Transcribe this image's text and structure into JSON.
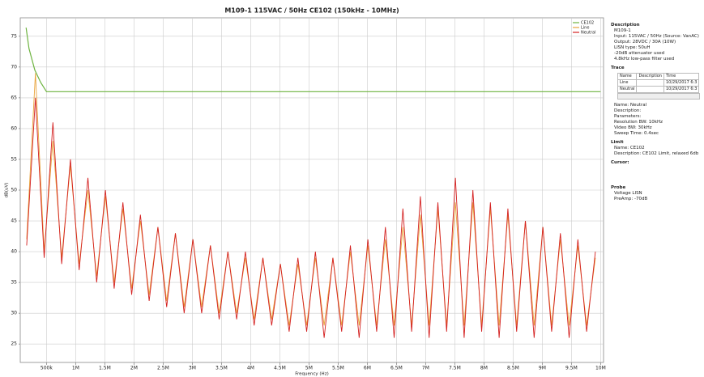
{
  "chart_data": {
    "type": "line",
    "title": "M109-1 115VAC / 50Hz CE102 (150kHz - 10MHz)",
    "xlabel": "Frequency (Hz)",
    "ylabel": "dB(uV)",
    "xlim": [
      50000,
      10050000
    ],
    "ylim": [
      22,
      78
    ],
    "grid": true,
    "legend": "upper right",
    "xticks": [
      {
        "value": 500000,
        "label": "500k"
      },
      {
        "value": 1000000,
        "label": "1M"
      },
      {
        "value": 1500000,
        "label": "1.5M"
      },
      {
        "value": 2000000,
        "label": "2M"
      },
      {
        "value": 2500000,
        "label": "2.5M"
      },
      {
        "value": 3000000,
        "label": "3M"
      },
      {
        "value": 3500000,
        "label": "3.5M"
      },
      {
        "value": 4000000,
        "label": "4M"
      },
      {
        "value": 4500000,
        "label": "4.5M"
      },
      {
        "value": 5000000,
        "label": "5M"
      },
      {
        "value": 5500000,
        "label": "5.5M"
      },
      {
        "value": 6000000,
        "label": "6M"
      },
      {
        "value": 6500000,
        "label": "6.5M"
      },
      {
        "value": 7000000,
        "label": "7M"
      },
      {
        "value": 7500000,
        "label": "7.5M"
      },
      {
        "value": 8000000,
        "label": "8M"
      },
      {
        "value": 8500000,
        "label": "8.5M"
      },
      {
        "value": 9000000,
        "label": "9M"
      },
      {
        "value": 9500000,
        "label": "9.5M"
      },
      {
        "value": 10000000,
        "label": "10M"
      }
    ],
    "yticks": [
      25,
      30,
      35,
      40,
      45,
      50,
      55,
      60,
      65,
      70,
      75
    ],
    "x": [
      160000,
      310000,
      460000,
      610000,
      760000,
      910000,
      1060000,
      1210000,
      1360000,
      1510000,
      1660000,
      1810000,
      1960000,
      2110000,
      2260000,
      2410000,
      2560000,
      2710000,
      2860000,
      3010000,
      3160000,
      3310000,
      3460000,
      3610000,
      3760000,
      3910000,
      4060000,
      4210000,
      4360000,
      4510000,
      4660000,
      4810000,
      4960000,
      5110000,
      5260000,
      5410000,
      5560000,
      5710000,
      5860000,
      6010000,
      6160000,
      6310000,
      6460000,
      6610000,
      6760000,
      6910000,
      7060000,
      7210000,
      7360000,
      7510000,
      7660000,
      7810000,
      7960000,
      8110000,
      8260000,
      8410000,
      8560000,
      8710000,
      8860000,
      9010000,
      9160000,
      9310000,
      9460000,
      9610000,
      9760000,
      9910000
    ],
    "series": [
      {
        "name": "CE102",
        "color": "#6db33f",
        "x": [
          150000,
          200000,
          300000,
          400000,
          500000,
          10000000
        ],
        "values": [
          76.4,
          73,
          69.5,
          67.5,
          66,
          66
        ]
      },
      {
        "name": "Line",
        "color": "#e8a33a",
        "values": [
          42,
          69,
          40,
          58,
          39,
          54,
          38,
          50,
          36,
          49,
          35,
          47,
          34,
          45,
          33,
          44,
          32,
          43,
          31,
          42,
          31,
          41,
          30,
          40,
          30,
          39,
          29,
          39,
          29,
          38,
          28,
          38,
          28,
          39,
          28,
          39,
          28,
          40,
          28,
          41,
          28,
          42,
          28,
          44,
          28,
          46,
          28,
          47,
          28,
          48,
          28,
          48,
          28,
          47,
          28,
          46,
          28,
          45,
          28,
          44,
          28,
          42,
          28,
          41,
          28,
          39
        ]
      },
      {
        "name": "Neutral",
        "color": "#d42020",
        "values": [
          41,
          65,
          39,
          61,
          38,
          55,
          37,
          52,
          35,
          50,
          34,
          48,
          33,
          46,
          32,
          44,
          31,
          43,
          30,
          42,
          30,
          41,
          29,
          40,
          29,
          40,
          28,
          39,
          28,
          38,
          27,
          39,
          27,
          40,
          26,
          39,
          27,
          41,
          26,
          42,
          27,
          44,
          26,
          47,
          27,
          49,
          26,
          48,
          27,
          52,
          26,
          50,
          27,
          48,
          26,
          47,
          27,
          45,
          26,
          44,
          27,
          43,
          26,
          42,
          27,
          40
        ]
      }
    ]
  },
  "panel": {
    "description": {
      "heading": "Description",
      "lines": [
        "M109-1",
        "Input: 115VAC / 50Hz (Source: VanAC)",
        "Output: 28VDC / 30A (10W)",
        "LISN type: 50uH",
        "-20dB attenuator used",
        "4.8kHz low-pass filter used"
      ]
    },
    "trace": {
      "heading": "Trace",
      "columns": [
        "Name",
        "Description",
        "Time"
      ],
      "rows": [
        [
          "Line",
          "",
          "10/29/2017 6:3"
        ],
        [
          "Neutral",
          "",
          "10/29/2017 6:3"
        ]
      ],
      "lines": [
        "Name: Neutral",
        "Description:",
        "Parameters:",
        "Resolution BW: 10kHz",
        "Video BW: 30kHz",
        "Sweep Time: 0.4sec"
      ]
    },
    "limit": {
      "heading": "Limit",
      "lines": [
        "Name: CE102",
        "Description: CE102 Limit, relaxed 6db"
      ]
    },
    "cursor": {
      "heading": "Cursor:"
    },
    "probe": {
      "heading": "Probe",
      "lines": [
        "Voltage LISN",
        "PreAmp: -70dB"
      ]
    }
  }
}
